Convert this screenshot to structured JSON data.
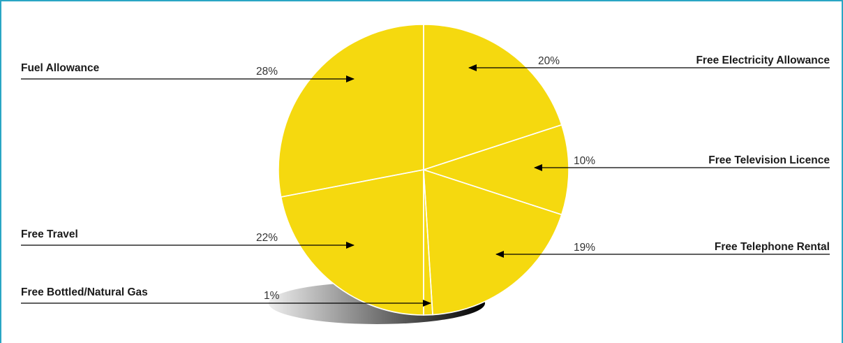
{
  "chart_data": {
    "type": "pie",
    "title": "",
    "slices": [
      {
        "label": "Free Electricity Allowance",
        "value": 20,
        "pct_text": "20%",
        "side": "right"
      },
      {
        "label": "Free Television Licence",
        "value": 10,
        "pct_text": "10%",
        "side": "right"
      },
      {
        "label": "Free Telephone Rental",
        "value": 19,
        "pct_text": "19%",
        "side": "right"
      },
      {
        "label": "Free Bottled/Natural Gas",
        "value": 1,
        "pct_text": "1%",
        "side": "left"
      },
      {
        "label": "Free Travel",
        "value": 22,
        "pct_text": "22%",
        "side": "left"
      },
      {
        "label": "Fuel Allowance",
        "value": 28,
        "pct_text": "28%",
        "side": "left"
      }
    ],
    "colors": {
      "light": "#fffbe8",
      "dark": "#f7dd14",
      "frame": "#2aa6c4",
      "shadow": "#000000"
    }
  }
}
